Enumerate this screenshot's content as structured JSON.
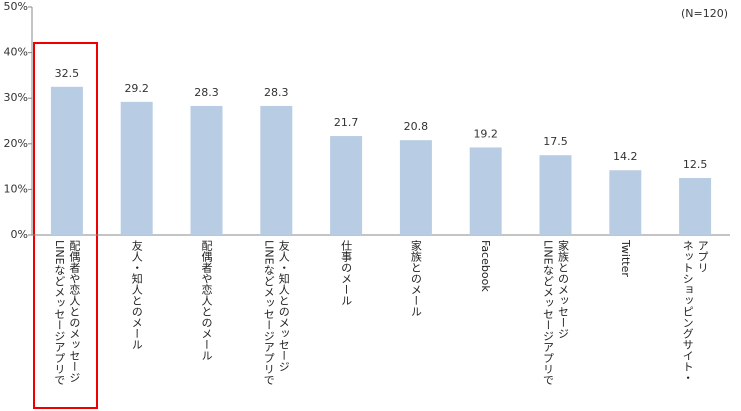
{
  "chart_data": {
    "type": "bar",
    "annotation": "(N=120)",
    "categories": [
      "LINEなどメッセージアプリで\n配偶者や恋人とのメッセージ",
      "友人・知人とのメール",
      "配偶者や恋人とのメール",
      "LINEなどメッセージアプリで\n友人・知人とのメッセージ",
      "仕事のメール",
      "家族とのメール",
      "Facebook",
      "LINEなどメッセージアプリで\n家族とのメッセージ",
      "Twitter",
      "ネットショッピングサイト・\nアプリ"
    ],
    "values": [
      32.5,
      29.2,
      28.3,
      28.3,
      21.7,
      20.8,
      19.2,
      17.5,
      14.2,
      12.5
    ],
    "color": "#b8cce4",
    "ylim": [
      0,
      50
    ],
    "yticks": [
      {
        "value": 0,
        "label": "0%"
      },
      {
        "value": 10,
        "label": "10%"
      },
      {
        "value": 20,
        "label": "20%"
      },
      {
        "value": 30,
        "label": "30%"
      },
      {
        "value": 40,
        "label": "40%"
      },
      {
        "value": 50,
        "label": "50%"
      }
    ]
  }
}
